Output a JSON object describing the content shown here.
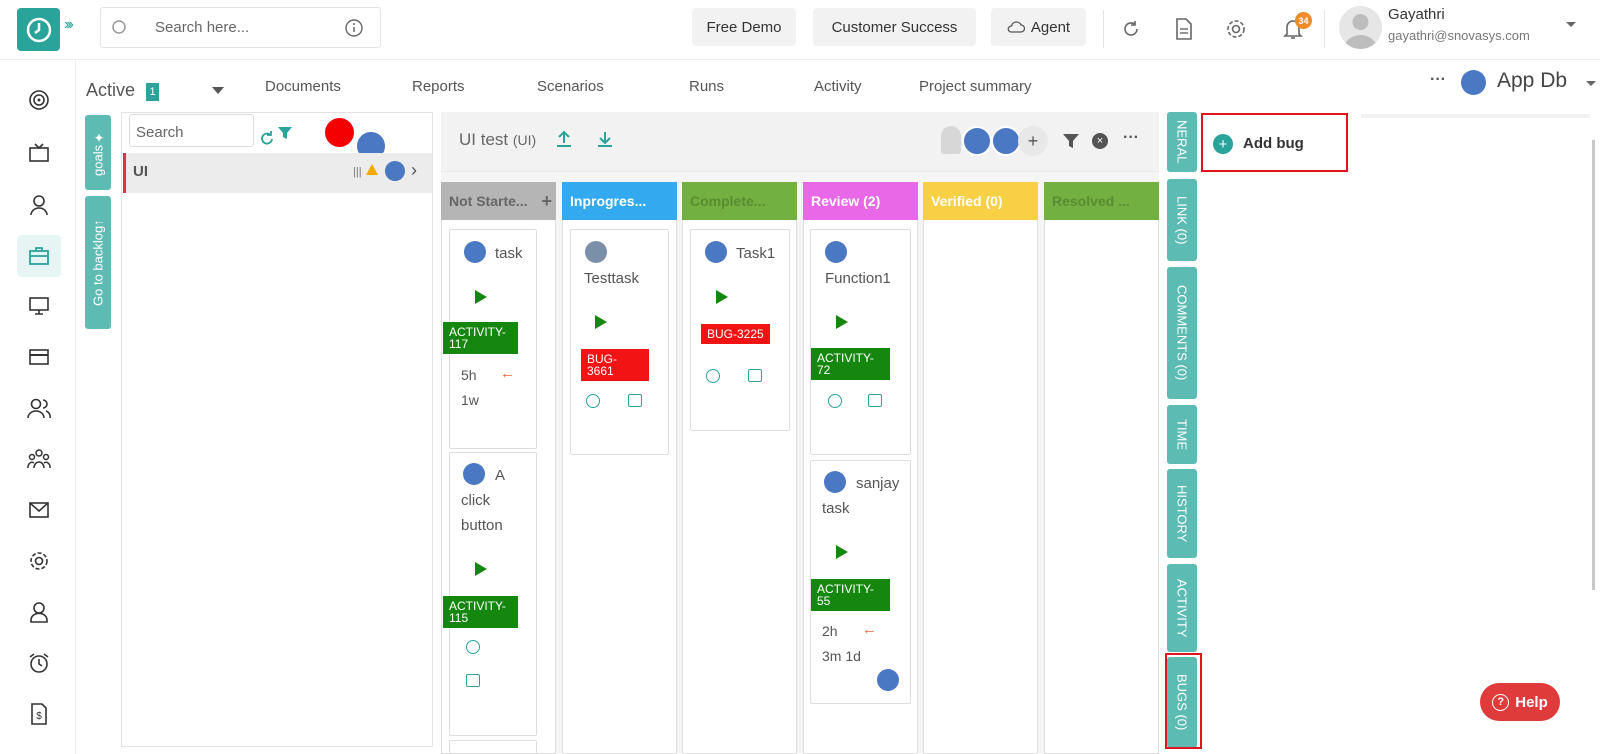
{
  "search": {
    "placeholder": "Search here..."
  },
  "header": {
    "free_demo": "Free Demo",
    "customer_success": "Customer Success",
    "agent": "Agent",
    "notif_count": "34",
    "user_name": "Gayathri",
    "user_email": "gayathri@snovasys.com"
  },
  "tabs": {
    "active_label": "Active",
    "active_count": "1",
    "items": [
      "Documents",
      "Reports",
      "Scenarios",
      "Runs",
      "Activity",
      "Project summary"
    ],
    "project": "App Db"
  },
  "left": {
    "goals": "goals",
    "backlog": "Go to backlog",
    "search_placeholder": "Search",
    "row_label": "UI"
  },
  "board": {
    "title": "UI test",
    "title_suffix": "(UI)",
    "columns": [
      {
        "label": "Not Starte...",
        "color": "#b5b5b5"
      },
      {
        "label": "Inprogres...",
        "color": "#33aaf0"
      },
      {
        "label": "Complete...",
        "color": "#72b041"
      },
      {
        "label": "Review (2)",
        "color": "#e868e8"
      },
      {
        "label": "Verified (0)",
        "color": "#f8d046"
      },
      {
        "label": "Resolved ...",
        "color": "#72b041"
      }
    ],
    "cards": {
      "c1_title": "task",
      "c1_tag": "ACTIVITY-117",
      "c1_est": "5h",
      "c1_spent": "1w",
      "c2_l1": "A",
      "c2_l2": "click",
      "c2_l3": "button",
      "c2_tag": "ACTIVITY-115",
      "c3_title": "Testtask",
      "c3_tag": "BUG-3661",
      "c4_title": "Task1",
      "c4_tag": "BUG-3225",
      "c5_title": "Function1",
      "c5_tag": "ACTIVITY-72",
      "c6_l1": "sanjay",
      "c6_l2": "task",
      "c6_tag": "ACTIVITY-55",
      "c6_est": "2h",
      "c6_spent": "3m 1d"
    }
  },
  "right_tabs": {
    "general": "NERAL",
    "link": "LINK (0)",
    "comments": "COMMENTS (0)",
    "time": "TIME",
    "history": "HISTORY",
    "activity": "ACTIVITY",
    "bugs": "BUGS (0)"
  },
  "add_bug": "Add bug",
  "help": "Help",
  "colors": {
    "accent": "#2aa39a",
    "highlight": "#e0141d"
  }
}
